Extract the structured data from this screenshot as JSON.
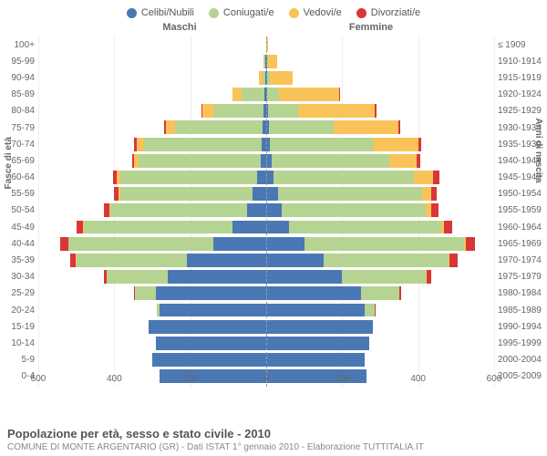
{
  "legend": [
    {
      "label": "Celibi/Nubili",
      "color": "#4a78b5"
    },
    {
      "label": "Coniugati/e",
      "color": "#b5d491"
    },
    {
      "label": "Vedovi/e",
      "color": "#f9c35a"
    },
    {
      "label": "Divorziati/e",
      "color": "#d93636"
    }
  ],
  "header": {
    "left": "Maschi",
    "right": "Femmine"
  },
  "axis_left_title": "Fasce di età",
  "axis_right_title": "Anni di nascita",
  "x_ticks": [
    600,
    400,
    200,
    0,
    200,
    400,
    600
  ],
  "x_max": 600,
  "colors": {
    "celibi": "#4a78b5",
    "coniugati": "#b5d491",
    "vedovi": "#f9c35a",
    "divorziati": "#d93636",
    "grid": "#eeeeee",
    "center": "#999999"
  },
  "rows": [
    {
      "age": "100+",
      "birth": "≤ 1909",
      "m": [
        0,
        0,
        0,
        0
      ],
      "f": [
        0,
        0,
        5,
        0
      ]
    },
    {
      "age": "95-99",
      "birth": "1910-1914",
      "m": [
        2,
        2,
        4,
        0
      ],
      "f": [
        2,
        2,
        25,
        0
      ]
    },
    {
      "age": "90-94",
      "birth": "1915-1919",
      "m": [
        2,
        8,
        10,
        0
      ],
      "f": [
        2,
        8,
        60,
        0
      ]
    },
    {
      "age": "85-89",
      "birth": "1920-1924",
      "m": [
        5,
        60,
        25,
        0
      ],
      "f": [
        3,
        30,
        160,
        2
      ]
    },
    {
      "age": "80-84",
      "birth": "1925-1929",
      "m": [
        8,
        130,
        30,
        2
      ],
      "f": [
        5,
        80,
        200,
        5
      ]
    },
    {
      "age": "75-79",
      "birth": "1930-1934",
      "m": [
        10,
        230,
        25,
        3
      ],
      "f": [
        8,
        170,
        170,
        5
      ]
    },
    {
      "age": "70-74",
      "birth": "1935-1939",
      "m": [
        12,
        310,
        20,
        5
      ],
      "f": [
        10,
        270,
        120,
        8
      ]
    },
    {
      "age": "65-69",
      "birth": "1940-1944",
      "m": [
        15,
        320,
        12,
        6
      ],
      "f": [
        15,
        310,
        70,
        10
      ]
    },
    {
      "age": "60-64",
      "birth": "1945-1949",
      "m": [
        25,
        360,
        8,
        10
      ],
      "f": [
        20,
        370,
        50,
        15
      ]
    },
    {
      "age": "55-59",
      "birth": "1950-1954",
      "m": [
        35,
        350,
        5,
        12
      ],
      "f": [
        30,
        380,
        25,
        15
      ]
    },
    {
      "age": "50-54",
      "birth": "1955-1959",
      "m": [
        50,
        360,
        3,
        15
      ],
      "f": [
        40,
        380,
        15,
        18
      ]
    },
    {
      "age": "45-49",
      "birth": "1960-1964",
      "m": [
        90,
        390,
        2,
        18
      ],
      "f": [
        60,
        400,
        8,
        22
      ]
    },
    {
      "age": "40-44",
      "birth": "1965-1969",
      "m": [
        140,
        380,
        2,
        20
      ],
      "f": [
        100,
        420,
        5,
        25
      ]
    },
    {
      "age": "35-39",
      "birth": "1970-1974",
      "m": [
        210,
        290,
        1,
        15
      ],
      "f": [
        150,
        330,
        3,
        22
      ]
    },
    {
      "age": "30-34",
      "birth": "1975-1979",
      "m": [
        260,
        160,
        0,
        8
      ],
      "f": [
        200,
        220,
        2,
        12
      ]
    },
    {
      "age": "25-29",
      "birth": "1980-1984",
      "m": [
        290,
        55,
        0,
        3
      ],
      "f": [
        250,
        100,
        0,
        5
      ]
    },
    {
      "age": "20-24",
      "birth": "1985-1989",
      "m": [
        280,
        8,
        0,
        0
      ],
      "f": [
        260,
        25,
        0,
        1
      ]
    },
    {
      "age": "15-19",
      "birth": "1990-1994",
      "m": [
        310,
        0,
        0,
        0
      ],
      "f": [
        280,
        0,
        0,
        0
      ]
    },
    {
      "age": "10-14",
      "birth": "1995-1999",
      "m": [
        290,
        0,
        0,
        0
      ],
      "f": [
        270,
        0,
        0,
        0
      ]
    },
    {
      "age": "5-9",
      "birth": "2000-2004",
      "m": [
        300,
        0,
        0,
        0
      ],
      "f": [
        260,
        0,
        0,
        0
      ]
    },
    {
      "age": "0-4",
      "birth": "2005-2009",
      "m": [
        280,
        0,
        0,
        0
      ],
      "f": [
        265,
        0,
        0,
        0
      ]
    }
  ],
  "footer": {
    "title": "Popolazione per età, sesso e stato civile - 2010",
    "sub": "COMUNE DI MONTE ARGENTARIO (GR) - Dati ISTAT 1° gennaio 2010 - Elaborazione TUTTITALIA.IT"
  }
}
